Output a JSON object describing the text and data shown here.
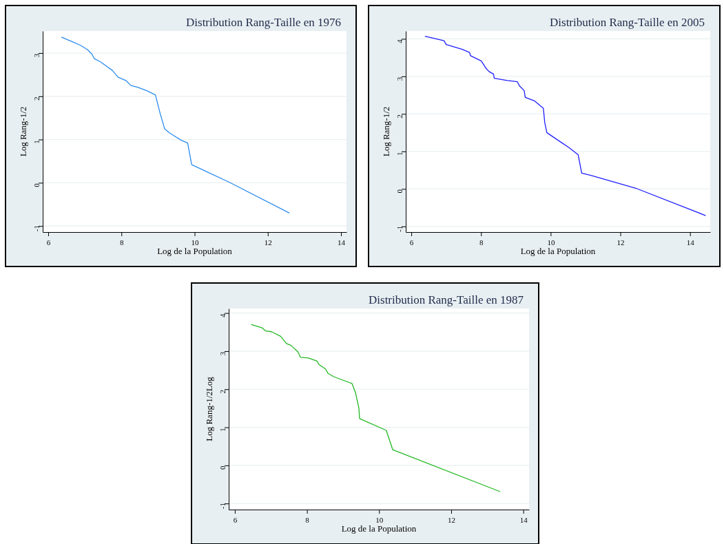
{
  "chart_data": [
    {
      "type": "line",
      "title": "Distribution Rang-Taille en 1976",
      "xlabel": "Log de la Population",
      "ylabel": "Log Rang-1/2",
      "xlim": [
        5.85,
        14.15
      ],
      "ylim": [
        -1.14,
        3.51
      ],
      "xticks": [
        6,
        8,
        10,
        12,
        14
      ],
      "yticks": [
        -1,
        0,
        1,
        2,
        3
      ],
      "grid": "y",
      "x": [
        6.36,
        6.66,
        6.88,
        7.07,
        7.19,
        7.26,
        7.44,
        7.57,
        7.75,
        7.91,
        8.13,
        8.26,
        8.44,
        8.69,
        8.93,
        9.05,
        9.18,
        9.32,
        9.64,
        9.81,
        9.92,
        10.95,
        12.59
      ],
      "series": [
        {
          "color": "#2b8cf0",
          "values": [
            3.37,
            3.26,
            3.18,
            3.08,
            2.98,
            2.87,
            2.79,
            2.71,
            2.6,
            2.44,
            2.36,
            2.25,
            2.21,
            2.13,
            2.03,
            1.63,
            1.25,
            1.15,
            0.98,
            0.92,
            0.42,
            0.01,
            -0.7
          ]
        }
      ]
    },
    {
      "type": "line",
      "title": "Distribution Rang-Taille en 2005",
      "xlabel": "Log de la Population",
      "ylabel": "Log Rang-1/2",
      "xlim": [
        5.84,
        14.58
      ],
      "ylim": [
        -1.15,
        4.21
      ],
      "xticks": [
        6,
        8,
        10,
        12,
        14
      ],
      "yticks": [
        -1,
        0,
        1,
        2,
        3,
        4
      ],
      "grid": "y",
      "x": [
        6.39,
        6.94,
        7.0,
        7.46,
        7.67,
        7.7,
        8.01,
        8.14,
        8.23,
        8.36,
        8.38,
        8.75,
        9.04,
        9.11,
        9.24,
        9.27,
        9.53,
        9.79,
        9.83,
        9.89,
        10.24,
        10.53,
        10.79,
        10.89,
        11.15,
        12.44,
        14.45
      ],
      "series": [
        {
          "color": "#1f1fff",
          "values": [
            4.07,
            3.95,
            3.85,
            3.72,
            3.64,
            3.55,
            3.41,
            3.22,
            3.13,
            3.06,
            2.95,
            2.89,
            2.86,
            2.74,
            2.62,
            2.44,
            2.35,
            2.15,
            1.77,
            1.5,
            1.28,
            1.1,
            0.91,
            0.42,
            0.36,
            0.02,
            -0.71
          ]
        }
      ]
    },
    {
      "type": "line",
      "title": "Distribution Rang-Taille en 1987",
      "xlabel": "Log de la Population",
      "ylabel": "Log Rang-1/2Log",
      "xlim": [
        5.83,
        14.16
      ],
      "ylim": [
        -1.16,
        4.12
      ],
      "xticks": [
        6,
        8,
        10,
        12,
        14
      ],
      "yticks": [
        -1,
        0,
        1,
        2,
        3,
        4
      ],
      "grid": "y",
      "x": [
        6.45,
        6.76,
        6.86,
        7.02,
        7.27,
        7.34,
        7.43,
        7.56,
        7.75,
        7.82,
        8.04,
        8.28,
        8.33,
        8.52,
        8.58,
        8.74,
        9.25,
        9.35,
        9.44,
        9.46,
        10.2,
        10.38,
        13.36
      ],
      "series": [
        {
          "color": "#22b822",
          "values": [
            3.7,
            3.61,
            3.53,
            3.51,
            3.39,
            3.31,
            3.2,
            3.15,
            2.98,
            2.84,
            2.82,
            2.74,
            2.65,
            2.53,
            2.42,
            2.33,
            2.15,
            1.9,
            1.51,
            1.23,
            0.92,
            0.41,
            -0.69
          ]
        }
      ]
    }
  ]
}
